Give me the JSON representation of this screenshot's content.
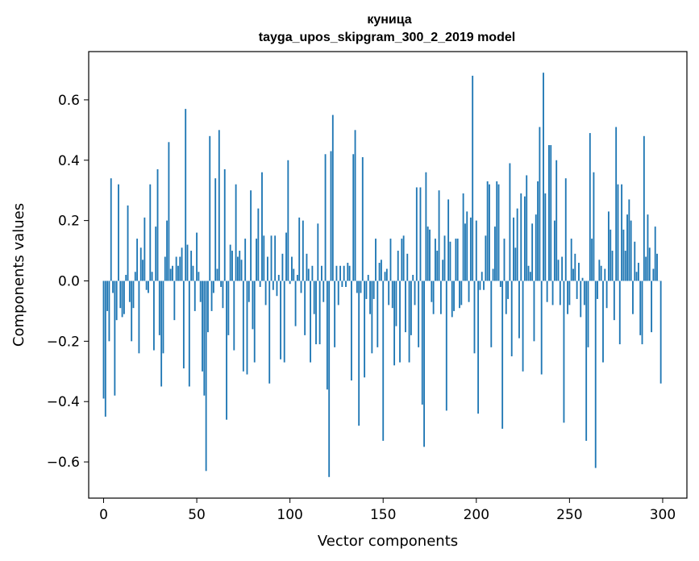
{
  "chart_data": {
    "type": "bar",
    "title": "куница",
    "subtitle": "tayga_upos_skipgram_300_2_2019 model",
    "xlabel": "Vector components",
    "ylabel": "Components values",
    "xlim": [
      -8,
      313
    ],
    "ylim": [
      -0.72,
      0.76
    ],
    "xticks": [
      0,
      50,
      100,
      150,
      200,
      250,
      300
    ],
    "yticks": [
      -0.6,
      -0.4,
      -0.2,
      0.0,
      0.2,
      0.4,
      0.6
    ],
    "ytick_labels": [
      "−0.6",
      "−0.4",
      "−0.2",
      "0.0",
      "0.2",
      "0.4",
      "0.6"
    ],
    "bar_color": "#1f77b4",
    "grid": false,
    "values": [
      -0.39,
      -0.45,
      -0.1,
      -0.2,
      0.34,
      -0.04,
      -0.38,
      -0.13,
      0.32,
      -0.09,
      -0.12,
      -0.11,
      0.02,
      0.25,
      -0.07,
      -0.2,
      -0.09,
      0.03,
      0.14,
      -0.24,
      0.11,
      0.07,
      0.21,
      -0.03,
      -0.04,
      0.32,
      0.03,
      -0.23,
      0.18,
      0.37,
      -0.18,
      -0.35,
      -0.24,
      0.08,
      0.2,
      0.46,
      0.04,
      0.05,
      -0.13,
      0.08,
      0.05,
      0.08,
      0.11,
      -0.29,
      0.57,
      0.12,
      -0.35,
      0.1,
      0.05,
      -0.1,
      0.16,
      0.03,
      -0.07,
      -0.3,
      -0.38,
      -0.63,
      -0.17,
      0.48,
      -0.1,
      -0.04,
      0.34,
      0.04,
      0.5,
      -0.02,
      -0.09,
      0.37,
      -0.46,
      -0.18,
      0.12,
      0.1,
      -0.23,
      0.32,
      0.08,
      0.1,
      0.07,
      -0.3,
      0.14,
      -0.31,
      -0.07,
      0.3,
      -0.16,
      -0.27,
      0.14,
      0.24,
      -0.02,
      0.36,
      0.15,
      -0.08,
      0.08,
      -0.34,
      0.15,
      -0.03,
      0.15,
      -0.05,
      0.02,
      -0.26,
      0.09,
      -0.27,
      0.16,
      0.4,
      -0.01,
      0.08,
      0.04,
      -0.15,
      0.02,
      0.21,
      -0.04,
      0.2,
      -0.18,
      0.09,
      0.04,
      -0.27,
      0.05,
      -0.11,
      -0.21,
      0.19,
      -0.21,
      0.05,
      -0.07,
      0.42,
      -0.36,
      -0.65,
      0.43,
      0.55,
      -0.22,
      0.05,
      -0.08,
      0.05,
      -0.02,
      0.05,
      -0.02,
      0.06,
      0.05,
      -0.33,
      0.42,
      0.5,
      -0.04,
      -0.48,
      -0.04,
      0.41,
      -0.32,
      -0.06,
      0.02,
      -0.11,
      -0.24,
      -0.06,
      0.14,
      -0.22,
      0.06,
      0.07,
      -0.53,
      0.03,
      0.04,
      -0.08,
      0.14,
      -0.09,
      -0.28,
      -0.15,
      0.1,
      -0.27,
      0.14,
      0.15,
      -0.17,
      0.09,
      -0.27,
      -0.18,
      0.02,
      -0.08,
      0.31,
      -0.22,
      0.31,
      -0.41,
      -0.55,
      0.36,
      0.18,
      0.17,
      -0.07,
      -0.11,
      0.14,
      0.1,
      0.3,
      -0.11,
      0.07,
      0.15,
      -0.43,
      0.27,
      0.13,
      -0.12,
      -0.1,
      0.14,
      0.14,
      -0.09,
      -0.08,
      0.29,
      0.19,
      0.23,
      -0.07,
      0.21,
      0.68,
      -0.24,
      0.2,
      -0.44,
      -0.03,
      0.03,
      -0.03,
      0.15,
      0.33,
      0.32,
      -0.22,
      0.04,
      0.18,
      0.33,
      0.32,
      -0.02,
      -0.49,
      0.14,
      -0.11,
      -0.06,
      0.39,
      -0.25,
      0.21,
      0.11,
      0.24,
      -0.19,
      0.29,
      -0.3,
      0.28,
      0.35,
      0.05,
      0.03,
      0.19,
      -0.2,
      0.22,
      0.33,
      0.51,
      -0.31,
      0.69,
      0.29,
      -0.07,
      0.45,
      0.45,
      -0.08,
      0.2,
      0.4,
      0.07,
      -0.08,
      0.08,
      -0.47,
      0.34,
      -0.11,
      -0.08,
      0.14,
      0.04,
      0.09,
      -0.06,
      0.06,
      -0.12,
      0.01,
      -0.08,
      -0.53,
      -0.22,
      0.49,
      0.14,
      0.36,
      -0.62,
      -0.06,
      0.07,
      0.05,
      -0.27,
      0.04,
      -0.09,
      0.23,
      0.17,
      0.1,
      -0.13,
      0.51,
      0.32,
      -0.21,
      0.32,
      0.17,
      0.1,
      0.22,
      0.27,
      0.2,
      -0.11,
      0.13,
      0.03,
      0.06,
      -0.18,
      -0.21,
      0.48,
      0.08,
      0.22,
      0.11,
      -0.17,
      0.04,
      0.18,
      0.09,
      0.0,
      -0.34
    ]
  }
}
